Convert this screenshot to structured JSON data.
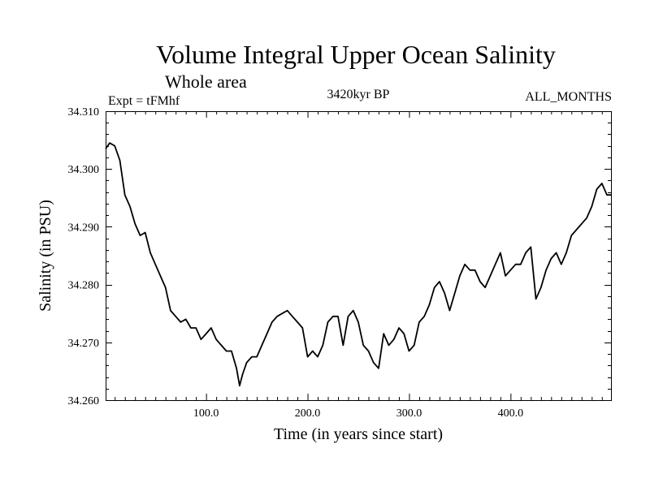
{
  "chart_data": {
    "type": "line",
    "title": "Volume Integral Upper Ocean Salinity",
    "subtitle": "Whole area",
    "header_left": "Expt = tFMhf",
    "header_center": "3420kyr BP",
    "header_right": "ALL_MONTHS",
    "xlabel": "Time (in years since start)",
    "ylabel": "Salinity (in PSU)",
    "xlim": [
      1,
      499
    ],
    "ylim": [
      34.26,
      34.31
    ],
    "x_ticks": [
      100,
      200,
      300,
      400
    ],
    "x_tick_labels": [
      "100.0",
      "200.0",
      "300.0",
      "400.0"
    ],
    "y_ticks": [
      34.26,
      34.27,
      34.28,
      34.29,
      34.3,
      34.31
    ],
    "y_tick_labels": [
      "34.260",
      "34.270",
      "34.280",
      "34.290",
      "34.300",
      "34.310"
    ],
    "grid": false,
    "line_color": "#000000",
    "series": [
      {
        "name": "Salinity",
        "x": [
          1,
          5,
          10,
          15,
          20,
          25,
          30,
          35,
          40,
          45,
          50,
          55,
          60,
          65,
          70,
          75,
          80,
          85,
          90,
          95,
          100,
          105,
          110,
          115,
          120,
          125,
          130,
          133,
          136,
          140,
          145,
          150,
          155,
          160,
          165,
          170,
          175,
          180,
          185,
          190,
          195,
          200,
          205,
          210,
          215,
          220,
          225,
          230,
          235,
          240,
          245,
          250,
          255,
          260,
          265,
          270,
          275,
          280,
          285,
          290,
          295,
          300,
          305,
          310,
          315,
          320,
          325,
          330,
          335,
          340,
          345,
          350,
          355,
          360,
          365,
          370,
          375,
          380,
          385,
          390,
          395,
          400,
          405,
          410,
          415,
          420,
          425,
          430,
          435,
          440,
          445,
          450,
          455,
          460,
          465,
          470,
          475,
          480,
          485,
          490,
          495,
          499
        ],
        "values": [
          34.3035,
          34.3045,
          34.304,
          34.3015,
          34.2955,
          34.2935,
          34.2905,
          34.2885,
          34.289,
          34.2855,
          34.2835,
          34.2815,
          34.2795,
          34.2755,
          34.2745,
          34.2735,
          34.274,
          34.2725,
          34.2725,
          34.2705,
          34.2715,
          34.2725,
          34.2705,
          34.2695,
          34.2685,
          34.2685,
          34.2655,
          34.2625,
          34.2645,
          34.2665,
          34.2675,
          34.2675,
          34.2695,
          34.2715,
          34.2735,
          34.2745,
          34.275,
          34.2755,
          34.2745,
          34.2735,
          34.2725,
          34.2675,
          34.2685,
          34.2675,
          34.2695,
          34.2735,
          34.2745,
          34.2745,
          34.2695,
          34.2745,
          34.2755,
          34.2735,
          34.2695,
          34.2685,
          34.2665,
          34.2655,
          34.2715,
          34.2695,
          34.2705,
          34.2725,
          34.2715,
          34.2685,
          34.2695,
          34.2735,
          34.2745,
          34.2765,
          34.2795,
          34.2805,
          34.2785,
          34.2755,
          34.2785,
          34.2815,
          34.2835,
          34.2825,
          34.2825,
          34.2805,
          34.2795,
          34.2815,
          34.2835,
          34.2855,
          34.2815,
          34.2825,
          34.2835,
          34.2835,
          34.2855,
          34.2865,
          34.2775,
          34.2795,
          34.2825,
          34.2845,
          34.2855,
          34.2835,
          34.2855,
          34.2885,
          34.2895,
          34.2905,
          34.2915,
          34.2935,
          34.2965,
          34.2975,
          34.2955,
          34.2955
        ]
      }
    ]
  }
}
